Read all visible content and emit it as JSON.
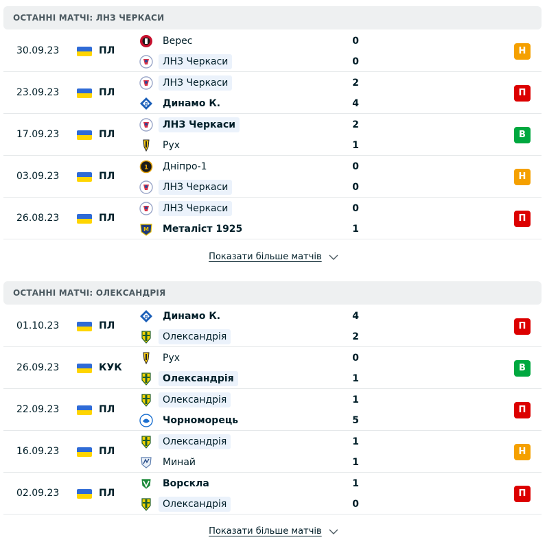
{
  "sections": [
    {
      "title": "ОСТАННІ МАТЧІ: ЛНЗ ЧЕРКАСИ",
      "more_label": "Показати більше матчів",
      "matches": [
        {
          "date": "30.09.23",
          "comp": "ПЛ",
          "home": {
            "name": "Верес",
            "score": "0",
            "logo": "veres-logo",
            "highlight": false,
            "bold": false
          },
          "away": {
            "name": "ЛНЗ Черкаси",
            "score": "0",
            "logo": "lnz-logo",
            "highlight": true,
            "bold": false
          },
          "result": "Н",
          "result_type": "D"
        },
        {
          "date": "23.09.23",
          "comp": "ПЛ",
          "home": {
            "name": "ЛНЗ Черкаси",
            "score": "2",
            "logo": "lnz-logo",
            "highlight": true,
            "bold": false
          },
          "away": {
            "name": "Динамо К.",
            "score": "4",
            "logo": "dynamo-logo",
            "highlight": false,
            "bold": true
          },
          "result": "П",
          "result_type": "L"
        },
        {
          "date": "17.09.23",
          "comp": "ПЛ",
          "home": {
            "name": "ЛНЗ Черкаси",
            "score": "2",
            "logo": "lnz-logo",
            "highlight": true,
            "bold": true
          },
          "away": {
            "name": "Рух",
            "score": "1",
            "logo": "rukh-logo",
            "highlight": false,
            "bold": false
          },
          "result": "В",
          "result_type": "W"
        },
        {
          "date": "03.09.23",
          "comp": "ПЛ",
          "home": {
            "name": "Дніпро-1",
            "score": "0",
            "logo": "dnipro1-logo",
            "highlight": false,
            "bold": false
          },
          "away": {
            "name": "ЛНЗ Черкаси",
            "score": "0",
            "logo": "lnz-logo",
            "highlight": true,
            "bold": false
          },
          "result": "Н",
          "result_type": "D"
        },
        {
          "date": "26.08.23",
          "comp": "ПЛ",
          "home": {
            "name": "ЛНЗ Черкаси",
            "score": "0",
            "logo": "lnz-logo",
            "highlight": true,
            "bold": false
          },
          "away": {
            "name": "Металіст 1925",
            "score": "1",
            "logo": "metalist-logo",
            "highlight": false,
            "bold": true
          },
          "result": "П",
          "result_type": "L"
        }
      ]
    },
    {
      "title": "ОСТАННІ МАТЧІ: ОЛЕКСАНДРІЯ",
      "more_label": "Показати більше матчів",
      "matches": [
        {
          "date": "01.10.23",
          "comp": "ПЛ",
          "home": {
            "name": "Динамо К.",
            "score": "4",
            "logo": "dynamo-logo",
            "highlight": false,
            "bold": true
          },
          "away": {
            "name": "Олександрія",
            "score": "2",
            "logo": "oleksandriya-logo",
            "highlight": true,
            "bold": false
          },
          "result": "П",
          "result_type": "L"
        },
        {
          "date": "26.09.23",
          "comp": "КУК",
          "home": {
            "name": "Рух",
            "score": "0",
            "logo": "rukh-logo",
            "highlight": false,
            "bold": false
          },
          "away": {
            "name": "Олександрія",
            "score": "1",
            "logo": "oleksandriya-logo",
            "highlight": true,
            "bold": true
          },
          "result": "В",
          "result_type": "W"
        },
        {
          "date": "22.09.23",
          "comp": "ПЛ",
          "home": {
            "name": "Олександрія",
            "score": "1",
            "logo": "oleksandriya-logo",
            "highlight": true,
            "bold": false
          },
          "away": {
            "name": "Чорноморець",
            "score": "5",
            "logo": "chornomorets-logo",
            "highlight": false,
            "bold": true
          },
          "result": "П",
          "result_type": "L"
        },
        {
          "date": "16.09.23",
          "comp": "ПЛ",
          "home": {
            "name": "Олександрія",
            "score": "1",
            "logo": "oleksandriya-logo",
            "highlight": true,
            "bold": false
          },
          "away": {
            "name": "Минай",
            "score": "1",
            "logo": "mynai-logo",
            "highlight": false,
            "bold": false
          },
          "result": "Н",
          "result_type": "D"
        },
        {
          "date": "02.09.23",
          "comp": "ПЛ",
          "home": {
            "name": "Ворскла",
            "score": "1",
            "logo": "vorskla-logo",
            "highlight": false,
            "bold": true
          },
          "away": {
            "name": "Олександрія",
            "score": "0",
            "logo": "oleksandriya-logo",
            "highlight": true,
            "bold": false
          },
          "result": "П",
          "result_type": "L"
        }
      ]
    }
  ],
  "colors": {
    "draw": "#f5a000",
    "loss": "#dc0000",
    "win": "#00a83f",
    "highlight_bg": "#ebf2fb"
  },
  "flag": "ukraine-flag-icon"
}
